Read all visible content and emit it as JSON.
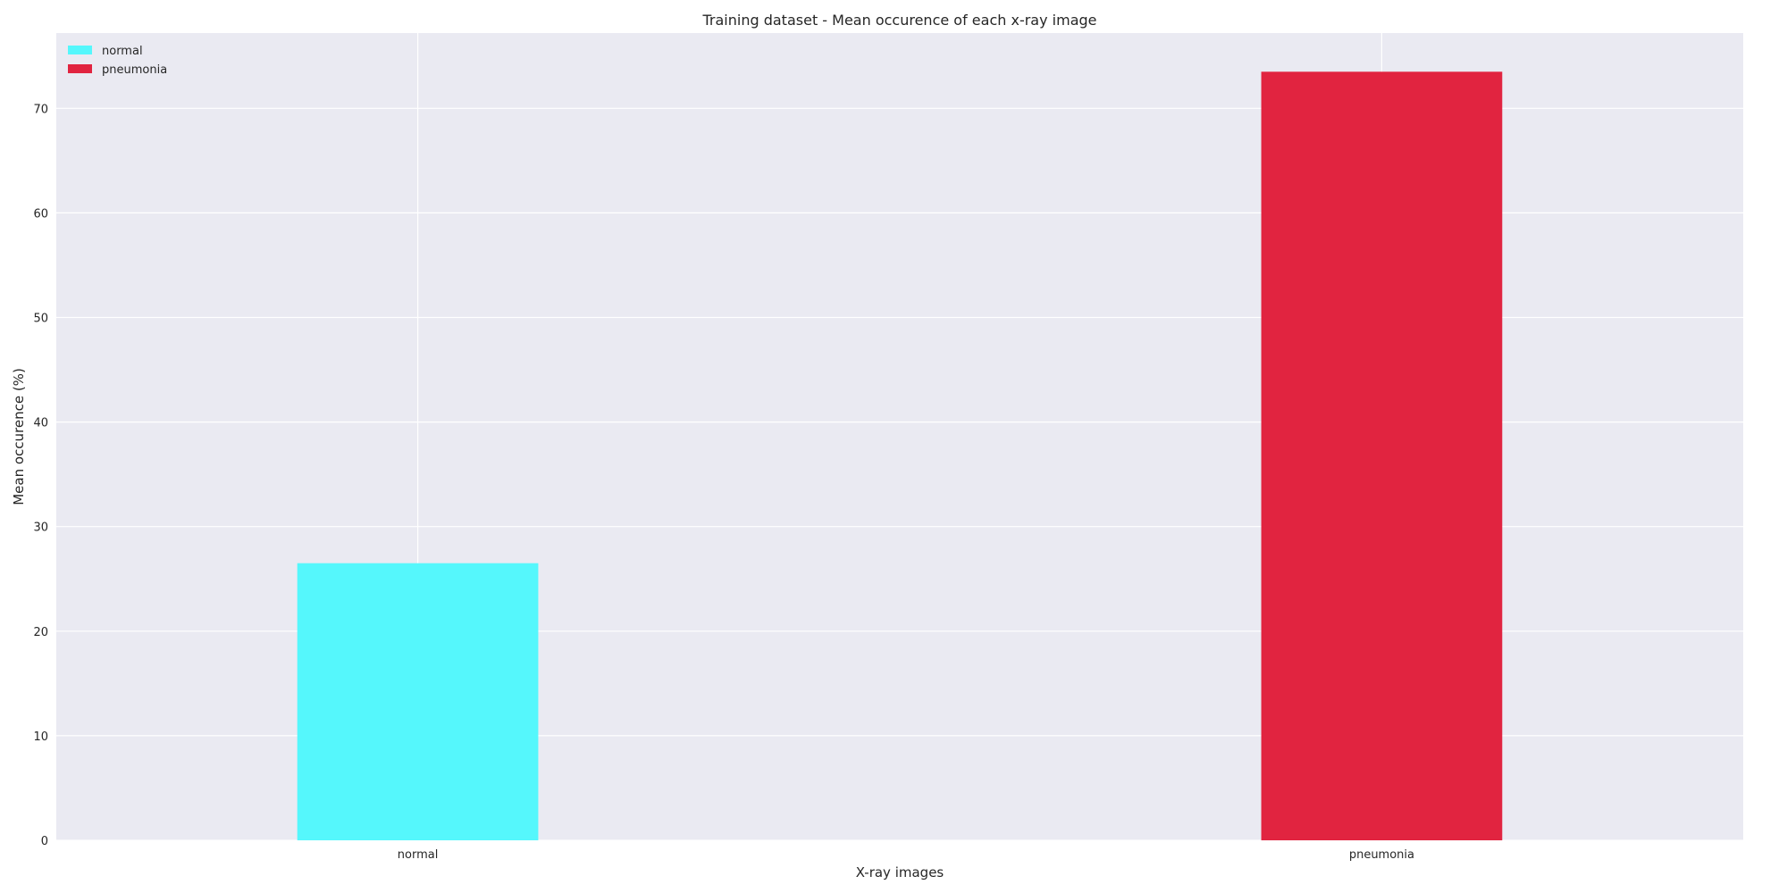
{
  "chart_data": {
    "type": "bar",
    "title": "Training dataset - Mean occurence of each x-ray image",
    "xlabel": "X-ray images",
    "ylabel": "Mean occurence (%)",
    "categories": [
      "normal",
      "pneumonia"
    ],
    "values": [
      26.5,
      73.5
    ],
    "colors": [
      "#55f7fc",
      "#e12440"
    ],
    "ylim": [
      0,
      77.2
    ],
    "yticks": [
      0,
      10,
      20,
      30,
      40,
      50,
      60,
      70
    ],
    "grid": true,
    "legend": {
      "placement": "top-left",
      "entries": [
        {
          "label": "normal",
          "color": "#55f7fc"
        },
        {
          "label": "pneumonia",
          "color": "#e12440"
        }
      ]
    },
    "background": "#eaeaf2",
    "grid_color": "#ffffff"
  }
}
